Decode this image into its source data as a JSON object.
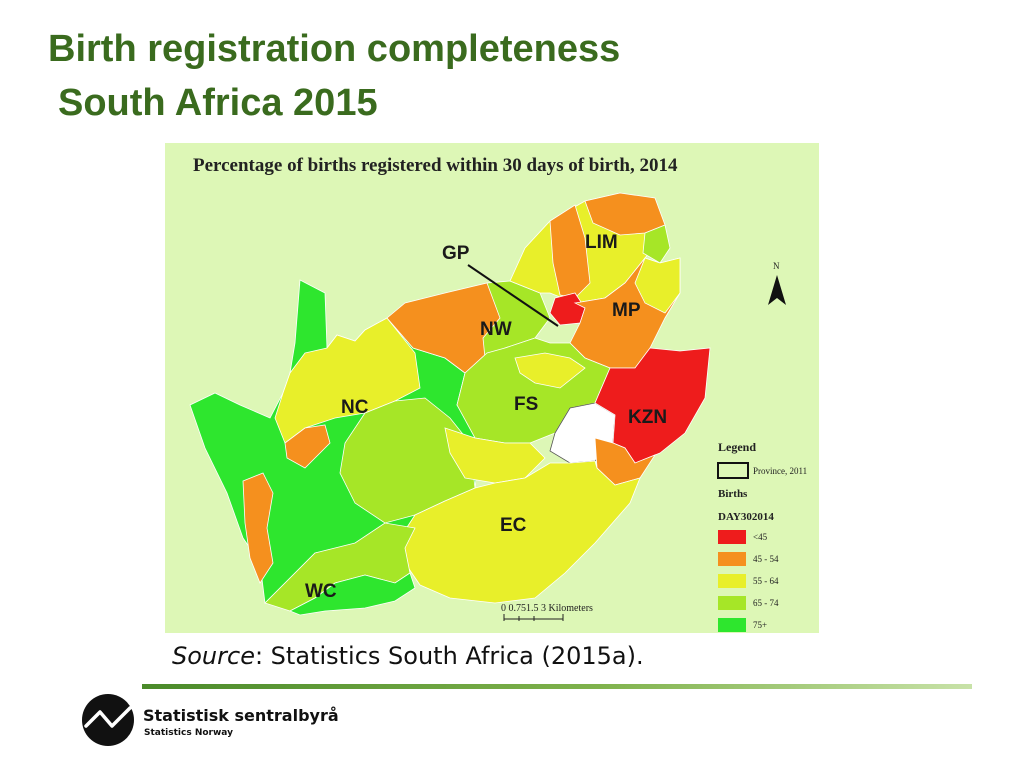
{
  "slide": {
    "title_line1": "Birth registration completeness",
    "title_line2": "South Africa 2015",
    "source_label": "Source",
    "source_text": ":  Statistics South Africa (2015a).",
    "brand_name": "Statistisk sentralbyrå",
    "brand_sub": "Statistics Norway"
  },
  "map": {
    "title": "Percentage of births registered within 30 days of birth, 2014",
    "north": "N",
    "scale_text": "0 0.751.5     3 Kilometers",
    "provinces": [
      {
        "code": "LIM",
        "fill": "#e8ef2a"
      },
      {
        "code": "MP",
        "fill": "#f5901e"
      },
      {
        "code": "GP",
        "fill": "#ee1c1c"
      },
      {
        "code": "NW",
        "fill": "#f5901e"
      },
      {
        "code": "FS",
        "fill": "#a6e627"
      },
      {
        "code": "KZN",
        "fill": "#ee1c1c"
      },
      {
        "code": "NC",
        "fill": "#e8ef2a"
      },
      {
        "code": "EC",
        "fill": "#e8ef2a"
      },
      {
        "code": "WC",
        "fill": "#a6e627"
      }
    ],
    "legend": {
      "title": "Legend",
      "province_label": "Province, 2011",
      "births_label": "Births",
      "field_label": "DAY302014",
      "classes": [
        {
          "label": "<45",
          "color": "#ee1c1c"
        },
        {
          "label": "45 - 54",
          "color": "#f5901e"
        },
        {
          "label": "55 - 64",
          "color": "#e8ef2a"
        },
        {
          "label": "65 - 74",
          "color": "#a6e627"
        },
        {
          "label": "75+",
          "color": "#2ee62e"
        }
      ]
    }
  }
}
